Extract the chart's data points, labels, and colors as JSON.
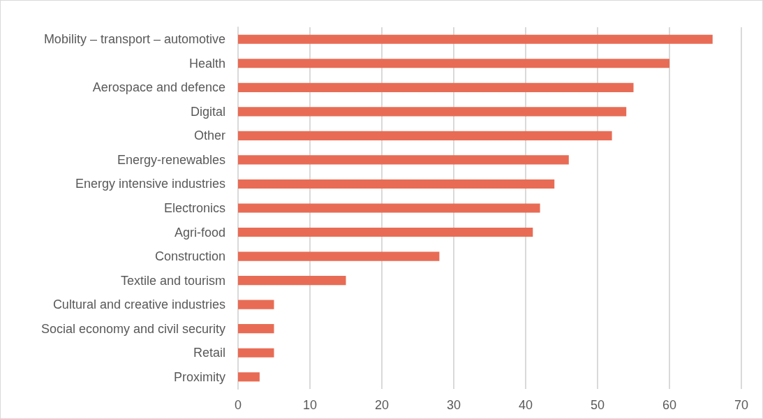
{
  "chart_data": {
    "type": "bar",
    "orientation": "horizontal",
    "categories": [
      "Mobility – transport – automotive",
      "Health",
      "Aerospace and defence",
      "Digital",
      "Other",
      "Energy-renewables",
      "Energy intensive industries",
      "Electronics",
      "Agri-food",
      "Construction",
      "Textile and tourism",
      "Cultural and creative industries",
      "Social economy and civil security",
      "Retail",
      "Proximity"
    ],
    "values": [
      66,
      60,
      55,
      54,
      52,
      46,
      44,
      42,
      41,
      28,
      15,
      5,
      5,
      5,
      3
    ],
    "color": "#e86c55",
    "xlim": [
      0,
      70
    ],
    "xticks": [
      0,
      10,
      20,
      30,
      40,
      50,
      60,
      70
    ],
    "grid": "x"
  }
}
